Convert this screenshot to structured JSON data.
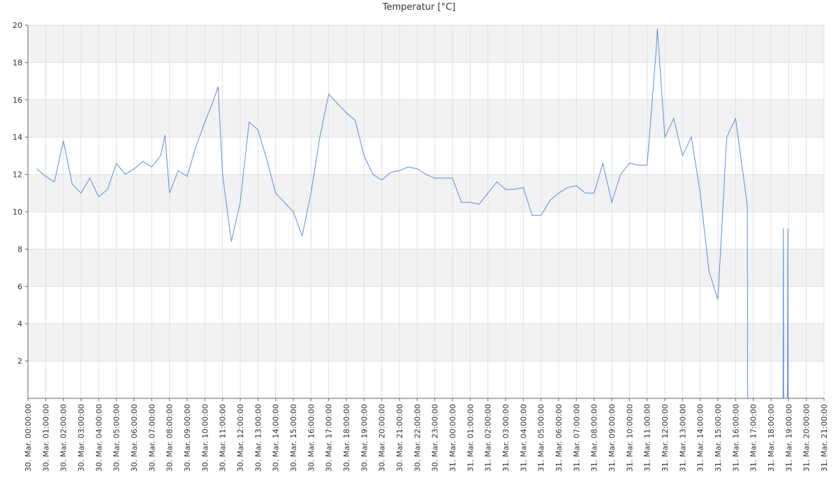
{
  "chart_data": {
    "type": "line",
    "title": "Temperatur [°C]",
    "xlim": [
      "30. Mar. 00:00:00",
      "31. Mar. 21:00:00"
    ],
    "xticks": [
      "30. Mar. 00:00:00",
      "30. Mar. 01:00:00",
      "30. Mar. 02:00:00",
      "30. Mar. 03:00:00",
      "30. Mar. 04:00:00",
      "30. Mar. 05:00:00",
      "30. Mar. 06:00:00",
      "30. Mar. 07:00:00",
      "30. Mar. 08:00:00",
      "30. Mar. 09:00:00",
      "30. Mar. 10:00:00",
      "30. Mar. 11:00:00",
      "30. Mar. 12:00:00",
      "30. Mar. 13:00:00",
      "30. Mar. 14:00:00",
      "30. Mar. 15:00:00",
      "30. Mar. 16:00:00",
      "30. Mar. 17:00:00",
      "30. Mar. 18:00:00",
      "30. Mar. 19:00:00",
      "30. Mar. 20:00:00",
      "30. Mar. 21:00:00",
      "30. Mar. 22:00:00",
      "30. Mar. 23:00:00",
      "31. Mar. 00:00:00",
      "31. Mar. 01:00:00",
      "31. Mar. 02:00:00",
      "31. Mar. 03:00:00",
      "31. Mar. 04:00:00",
      "31. Mar. 05:00:00",
      "31. Mar. 06:00:00",
      "31. Mar. 07:00:00",
      "31. Mar. 08:00:00",
      "31. Mar. 09:00:00",
      "31. Mar. 10:00:00",
      "31. Mar. 11:00:00",
      "31. Mar. 12:00:00",
      "31. Mar. 13:00:00",
      "31. Mar. 14:00:00",
      "31. Mar. 15:00:00",
      "31. Mar. 16:00:00",
      "31. Mar. 17:00:00",
      "31. Mar. 18:00:00",
      "31. Mar. 19:00:00",
      "31. Mar. 20:00:00",
      "31. Mar. 21:00:00"
    ],
    "ylim": [
      0,
      20
    ],
    "yticks": [
      2,
      4,
      6,
      8,
      10,
      12,
      14,
      16,
      18,
      20
    ],
    "grid": true,
    "x": [
      "30. Mar. 00:30:00",
      "30. Mar. 01:00:00",
      "30. Mar. 01:30:00",
      "30. Mar. 02:00:00",
      "30. Mar. 02:30:00",
      "30. Mar. 03:00:00",
      "30. Mar. 03:30:00",
      "30. Mar. 04:00:00",
      "30. Mar. 04:30:00",
      "30. Mar. 05:00:00",
      "30. Mar. 05:30:00",
      "30. Mar. 06:00:00",
      "30. Mar. 06:30:00",
      "30. Mar. 07:00:00",
      "30. Mar. 07:30:00",
      "30. Mar. 07:45:00",
      "30. Mar. 08:00:00",
      "30. Mar. 08:30:00",
      "30. Mar. 09:00:00",
      "30. Mar. 09:30:00",
      "30. Mar. 10:00:00",
      "30. Mar. 10:30:00",
      "30. Mar. 10:45:00",
      "30. Mar. 11:00:00",
      "30. Mar. 11:30:00",
      "30. Mar. 12:00:00",
      "30. Mar. 12:30:00",
      "30. Mar. 13:00:00",
      "30. Mar. 13:30:00",
      "30. Mar. 14:00:00",
      "30. Mar. 14:30:00",
      "30. Mar. 15:00:00",
      "30. Mar. 15:30:00",
      "30. Mar. 16:00:00",
      "30. Mar. 16:30:00",
      "30. Mar. 17:00:00",
      "30. Mar. 17:30:00",
      "30. Mar. 18:00:00",
      "30. Mar. 18:30:00",
      "30. Mar. 19:00:00",
      "30. Mar. 19:30:00",
      "30. Mar. 20:00:00",
      "30. Mar. 20:30:00",
      "30. Mar. 21:00:00",
      "30. Mar. 21:30:00",
      "30. Mar. 22:00:00",
      "30. Mar. 22:30:00",
      "30. Mar. 23:00:00",
      "30. Mar. 23:30:00",
      "31. Mar. 00:00:00",
      "31. Mar. 00:30:00",
      "31. Mar. 01:00:00",
      "31. Mar. 01:30:00",
      "31. Mar. 02:00:00",
      "31. Mar. 02:30:00",
      "31. Mar. 03:00:00",
      "31. Mar. 03:30:00",
      "31. Mar. 04:00:00",
      "31. Mar. 04:30:00",
      "31. Mar. 05:00:00",
      "31. Mar. 05:30:00",
      "31. Mar. 06:00:00",
      "31. Mar. 06:30:00",
      "31. Mar. 07:00:00",
      "31. Mar. 07:30:00",
      "31. Mar. 08:00:00",
      "31. Mar. 08:30:00",
      "31. Mar. 09:00:00",
      "31. Mar. 09:30:00",
      "31. Mar. 10:00:00",
      "31. Mar. 10:30:00",
      "31. Mar. 11:00:00",
      "31. Mar. 11:30:00",
      "31. Mar. 11:35:00",
      "31. Mar. 12:00:00",
      "31. Mar. 12:30:00",
      "31. Mar. 13:00:00",
      "31. Mar. 13:30:00",
      "31. Mar. 14:00:00",
      "31. Mar. 14:30:00",
      "31. Mar. 15:00:00",
      "31. Mar. 15:30:00",
      "31. Mar. 16:00:00",
      "31. Mar. 16:30:00",
      "31. Mar. 16:40:00",
      "31. Mar. 16:41:00",
      "31. Mar. 17:00:00",
      "31. Mar. 18:41:00",
      "31. Mar. 18:42:00",
      "31. Mar. 18:43:00",
      "31. Mar. 18:50:00",
      "31. Mar. 18:56:00",
      "31. Mar. 18:57:00",
      "31. Mar. 18:58:00"
    ],
    "series": [
      {
        "name": "Temperatur",
        "color": "#5a8ee0",
        "values": [
          12.3,
          11.9,
          11.6,
          13.8,
          11.5,
          11.0,
          11.8,
          10.8,
          11.2,
          12.6,
          12.0,
          12.3,
          12.7,
          12.4,
          13.0,
          14.1,
          11.0,
          12.2,
          11.9,
          13.5,
          14.8,
          16.0,
          16.7,
          12.0,
          8.4,
          10.5,
          14.8,
          14.4,
          12.8,
          11.0,
          10.5,
          10.0,
          8.7,
          11.0,
          14.0,
          16.3,
          15.8,
          15.3,
          14.9,
          13.0,
          12.0,
          11.7,
          12.1,
          12.2,
          12.4,
          12.3,
          12.0,
          11.8,
          11.8,
          11.8,
          10.5,
          10.5,
          10.4,
          11.0,
          11.6,
          11.2,
          11.2,
          11.3,
          9.8,
          9.8,
          10.6,
          11.0,
          11.3,
          11.4,
          11.0,
          11.0,
          12.6,
          10.5,
          12.0,
          12.6,
          12.5,
          12.5,
          18.5,
          19.8,
          14.0,
          15.0,
          13.0,
          14.0,
          11.0,
          6.8,
          5.3,
          14.0,
          15.0,
          11.5,
          10.3,
          0,
          null,
          0,
          9.1,
          0,
          null,
          0,
          9.1,
          0
        ]
      }
    ]
  }
}
